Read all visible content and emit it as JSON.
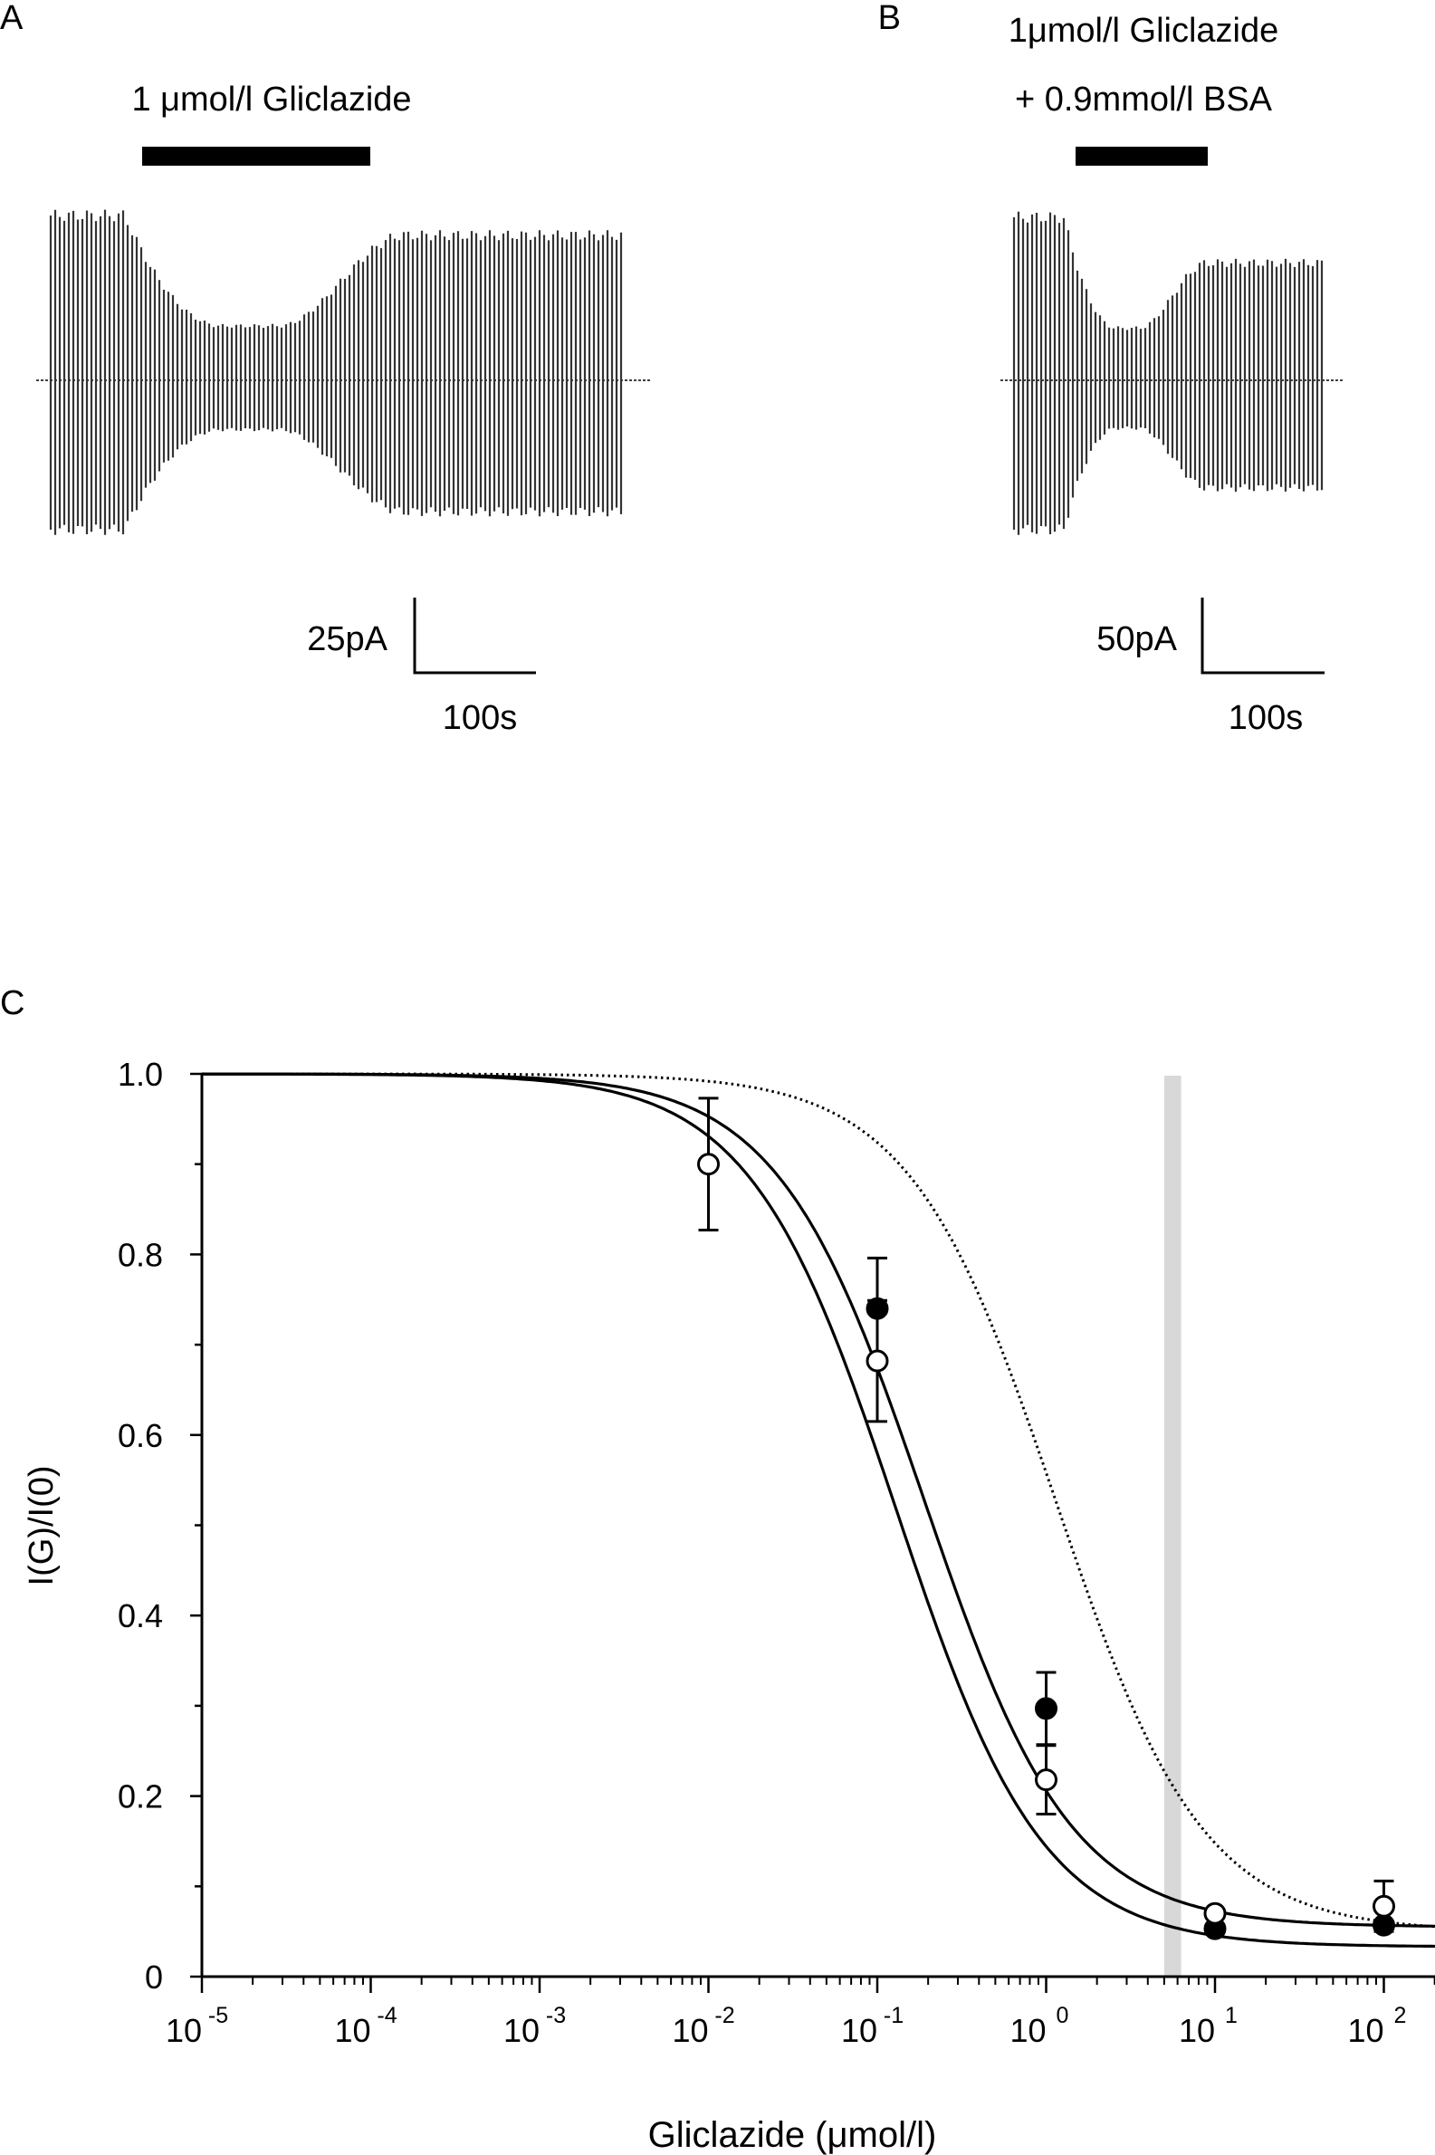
{
  "panels": {
    "a": {
      "label": "A",
      "drug_label": "1 μmol/l Gliclazide",
      "scale_current": "25pA",
      "scale_time": "100s"
    },
    "b": {
      "label": "B",
      "drug_label_line1": "1μmol/l Gliclazide",
      "drug_label_line2": "+ 0.9mmol/l BSA",
      "scale_current": "50pA",
      "scale_time": "100s"
    },
    "c": {
      "label": "C"
    }
  },
  "chart_data": [
    {
      "type": "trace",
      "panel": "A",
      "title": "1 μmol/l Gliclazide",
      "description_of_data": "relative current amplitude envelope per sweep",
      "baseline_amplitude": 1.0,
      "inhibited_amplitude": 0.33,
      "recovered_amplitude": 0.88,
      "scale_bar": {
        "current": "25pA",
        "time": "100s"
      }
    },
    {
      "type": "trace",
      "panel": "B",
      "title": "1μmol/l Gliclazide + 0.9mmol/l BSA",
      "baseline_amplitude": 1.0,
      "inhibited_amplitude": 0.32,
      "recovered_amplitude": 0.72,
      "scale_bar": {
        "current": "50pA",
        "time": "100s"
      }
    },
    {
      "type": "line",
      "panel": "C",
      "title": "",
      "xlabel": "Gliclazide (μmol/l)",
      "ylabel": "I(G)/I(0)",
      "xscale": "log",
      "xlim_log10": [
        -5,
        2.3
      ],
      "ylim": [
        0,
        1.0
      ],
      "x_tick_bases": [
        "10",
        "10",
        "10",
        "10",
        "10",
        "10",
        "10",
        "10"
      ],
      "x_tick_exponents": [
        "-5",
        "-4",
        "-3",
        "-2",
        "-1",
        "0",
        "1",
        "2"
      ],
      "y_tick_labels": [
        "0",
        "0.2",
        "0.4",
        "0.6",
        "0.8",
        "1.0"
      ],
      "y_tick_values": [
        0,
        0.2,
        0.4,
        0.6,
        0.8,
        1.0
      ],
      "shaded_band_x": [
        5,
        6.3
      ],
      "series": [
        {
          "name": "filled",
          "marker": "filled-circle",
          "points": [
            {
              "x": 0.1,
              "y": 0.74,
              "err": 0.056
            },
            {
              "x": 1,
              "y": 0.297,
              "err": 0.04
            },
            {
              "x": 10,
              "y": 0.053,
              "err": 0
            },
            {
              "x": 100,
              "y": 0.057,
              "err": 0
            }
          ],
          "fit": {
            "ic50": 0.19,
            "hill": 1.0,
            "floor": 0.055,
            "style": "solid"
          }
        },
        {
          "name": "open",
          "marker": "open-circle",
          "points": [
            {
              "x": 0.01,
              "y": 0.9,
              "err": 0.073
            },
            {
              "x": 0.1,
              "y": 0.682,
              "err": 0.067
            },
            {
              "x": 1,
              "y": 0.218,
              "err": 0.038
            },
            {
              "x": 10,
              "y": 0.07,
              "err": 0
            },
            {
              "x": 100,
              "y": 0.078,
              "err": 0.028
            }
          ],
          "fit": {
            "ic50": 0.13,
            "hill": 1.0,
            "floor": 0.033,
            "style": "solid"
          }
        },
        {
          "name": "dotted-fit",
          "marker": "none",
          "points": [],
          "fit": {
            "ic50": 1.15,
            "hill": 1.0,
            "floor": 0.05,
            "style": "dotted"
          }
        }
      ]
    }
  ]
}
